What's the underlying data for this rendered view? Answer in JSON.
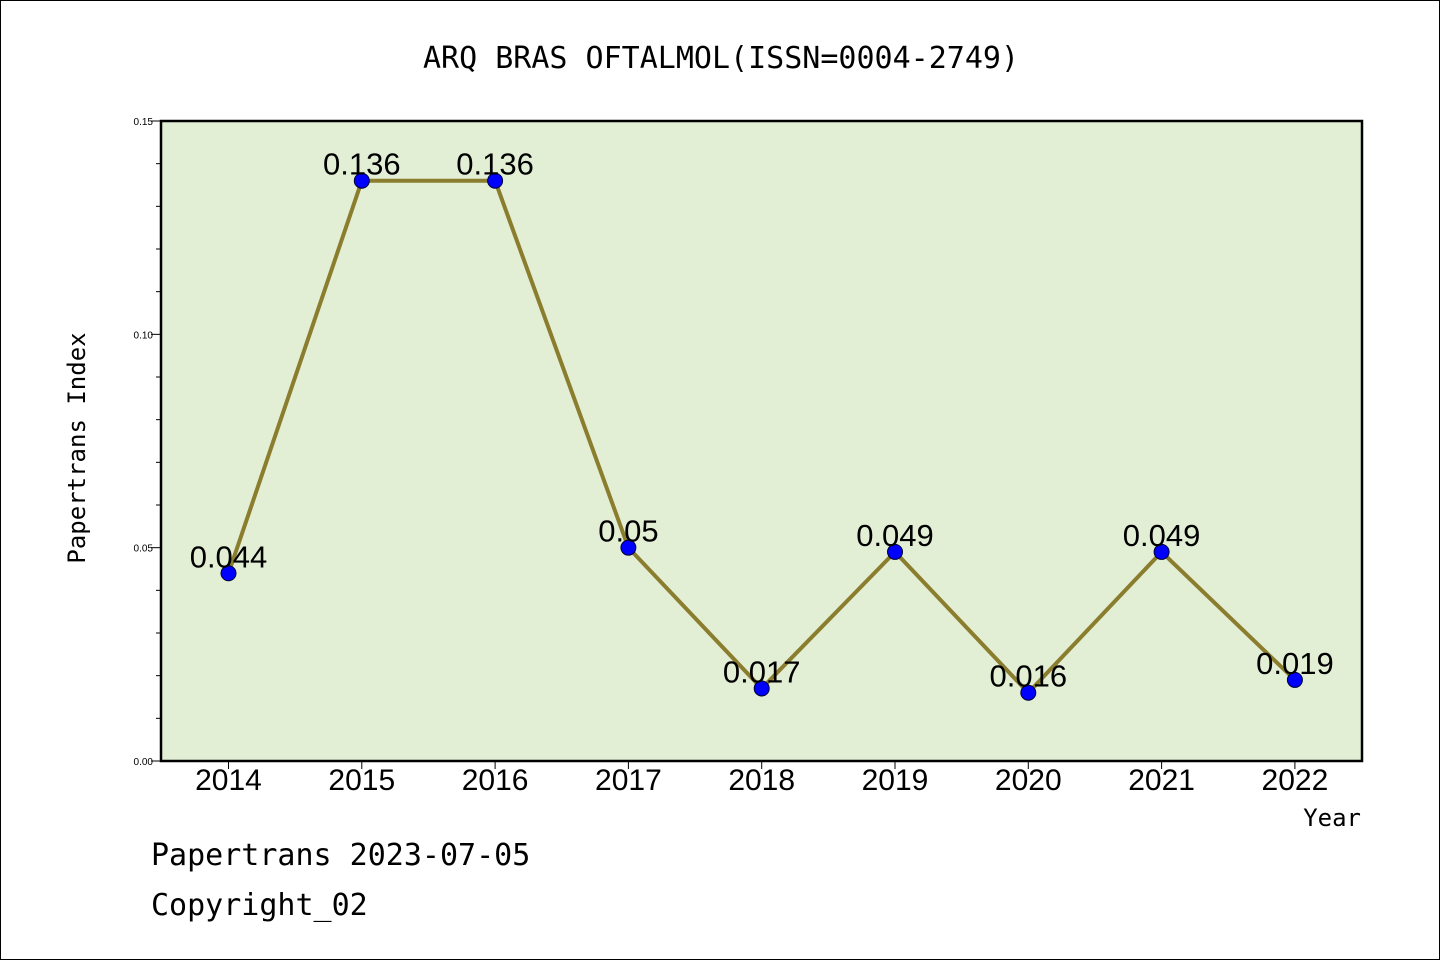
{
  "chart_data": {
    "type": "line",
    "title": "ARQ BRAS OFTALMOL(ISSN=0004-2749)",
    "xlabel": "Year",
    "ylabel": "Papertrans Index",
    "categories": [
      "2014",
      "2015",
      "2016",
      "2017",
      "2018",
      "2019",
      "2020",
      "2021",
      "2022"
    ],
    "series": [
      {
        "values": [
          0.044,
          0.136,
          0.136,
          0.05,
          0.017,
          0.049,
          0.016,
          0.049,
          0.019
        ],
        "labels": [
          "0.044",
          "0.136",
          "0.136",
          "0.05",
          "0.017",
          "0.049",
          "0.016",
          "0.049",
          "0.019"
        ],
        "line_color": "#8b7d2e",
        "marker_color": "#0000ff"
      }
    ],
    "ylim": [
      0,
      0.15
    ],
    "yticks": [
      "0.00",
      "0.05",
      "0.10",
      "0.15"
    ],
    "grid": false,
    "plot_background": "#e2efd5"
  },
  "footer": {
    "line1": "Papertrans 2023-07-05",
    "line2": "Copyright_02"
  }
}
